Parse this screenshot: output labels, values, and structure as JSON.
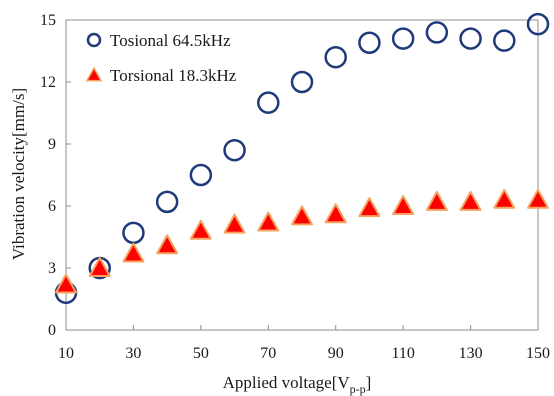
{
  "chart_data": {
    "type": "scatter",
    "title": "",
    "xlabel": "Applied voltage[V",
    "xlabel_subscript": "p-p",
    "xlabel_suffix": "]",
    "ylabel": "Vibration velocity[mm/s]",
    "xlim": [
      10,
      150
    ],
    "ylim": [
      0,
      15
    ],
    "x_ticks": [
      10,
      30,
      50,
      70,
      90,
      110,
      130,
      150
    ],
    "y_ticks": [
      0,
      3,
      6,
      9,
      12,
      15
    ],
    "grid": false,
    "legend_position": "top-left",
    "series": [
      {
        "name": "Tosional 64.5kHz",
        "marker": "open-circle",
        "color": "#1f3a7a",
        "x": [
          10,
          20,
          30,
          40,
          50,
          60,
          70,
          80,
          90,
          100,
          110,
          120,
          130,
          140,
          150
        ],
        "y": [
          1.8,
          3.0,
          4.7,
          6.2,
          7.5,
          8.7,
          11.0,
          12.0,
          13.2,
          13.9,
          14.1,
          14.4,
          14.1,
          14.0,
          14.8
        ]
      },
      {
        "name": "Torsional 18.3kHz",
        "marker": "filled-triangle",
        "color": "#ff0000",
        "edge_color": "#f4a460",
        "x": [
          10,
          20,
          30,
          40,
          50,
          60,
          70,
          80,
          90,
          100,
          110,
          120,
          130,
          140,
          150
        ],
        "y": [
          2.2,
          3.0,
          3.7,
          4.1,
          4.8,
          5.1,
          5.2,
          5.5,
          5.6,
          5.9,
          6.0,
          6.2,
          6.2,
          6.3,
          6.3
        ]
      }
    ]
  }
}
